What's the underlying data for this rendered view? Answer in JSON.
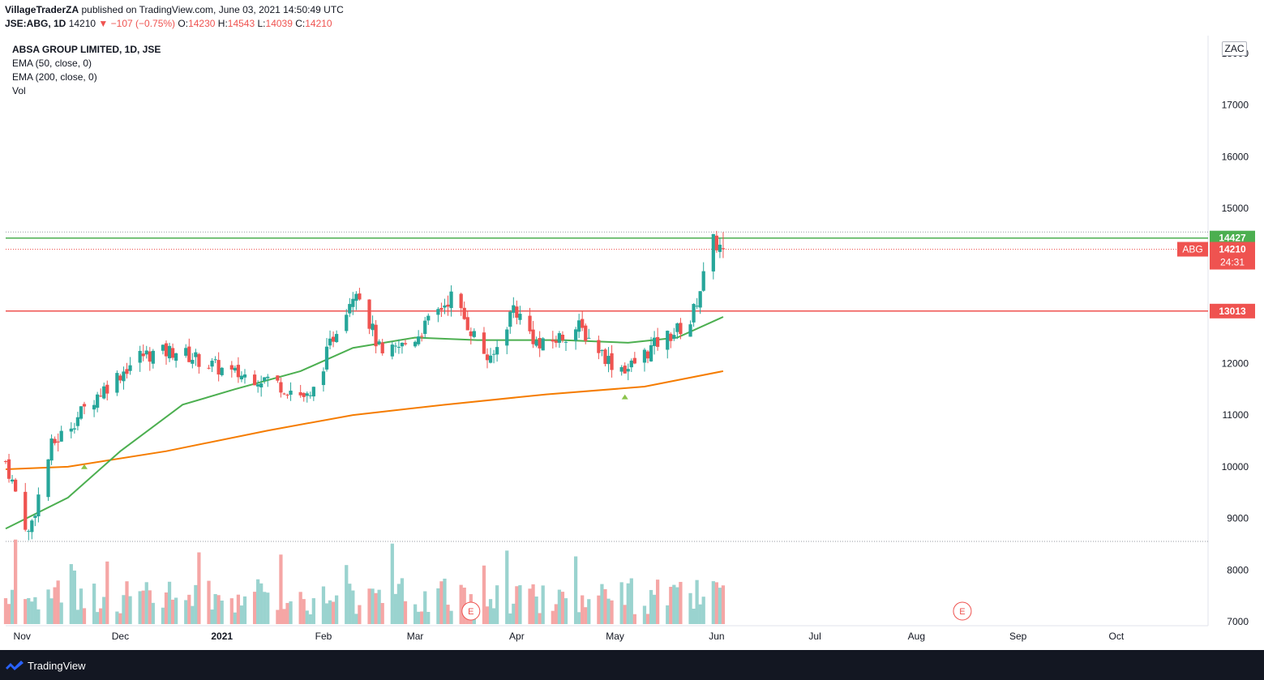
{
  "header": {
    "author": "VillageTraderZA",
    "published": "published on TradingView.com, June 03, 2021 14:50:49 UTC",
    "symbol": "JSE:ABG, 1D",
    "last": "14210",
    "change": "−107 (−0.75%)",
    "open_label": "O:",
    "open": "14230",
    "high_label": "H:",
    "high": "14543",
    "low_label": "L:",
    "low": "14039",
    "close_label": "C:",
    "close": "14210"
  },
  "legend": {
    "title": "ABSA GROUP LIMITED, 1D, JSE",
    "ema50": "EMA (50, close, 0)",
    "ema200": "EMA (200, close, 0)",
    "vol": "Vol"
  },
  "currency": "ZAC",
  "footer": {
    "brand": "TradingView"
  },
  "colors": {
    "up": "#26a69a",
    "down": "#ef5350",
    "ema50": "#4caf50",
    "ema200": "#f57c00",
    "resistance": "#4caf50",
    "support": "#ef5350"
  },
  "chart_data": {
    "type": "candlestick",
    "ylim": [
      7000,
      18000
    ],
    "y_ticks": [
      7000,
      8000,
      9000,
      10000,
      11000,
      12000,
      13000,
      14000,
      15000,
      16000,
      17000,
      18000
    ],
    "x_ticks": [
      "Nov",
      "Dec",
      "2021",
      "Feb",
      "Mar",
      "Apr",
      "May",
      "Jun",
      "Jul",
      "Aug",
      "Sep",
      "Oct"
    ],
    "start_date": "2020-10-27",
    "series": [
      {
        "name": "ABG",
        "anchors": [
          [
            "2020-10-27",
            10100
          ],
          [
            "2020-11-03",
            8700
          ],
          [
            "2020-11-10",
            10400
          ],
          [
            "2020-11-24",
            11400
          ],
          [
            "2020-12-07",
            12150
          ],
          [
            "2020-12-18",
            12250
          ],
          [
            "2021-01-04",
            11800
          ],
          [
            "2021-01-15",
            11700
          ],
          [
            "2021-01-28",
            11300
          ],
          [
            "2021-02-05",
            12700
          ],
          [
            "2021-02-11",
            13500
          ],
          [
            "2021-02-19",
            12100
          ],
          [
            "2021-03-01",
            12500
          ],
          [
            "2021-03-12",
            13300
          ],
          [
            "2021-03-24",
            12000
          ],
          [
            "2021-03-31",
            13100
          ],
          [
            "2021-04-08",
            12300
          ],
          [
            "2021-04-20",
            12700
          ],
          [
            "2021-04-30",
            12000
          ],
          [
            "2021-05-05",
            11900
          ],
          [
            "2021-05-14",
            12400
          ],
          [
            "2021-05-24",
            12800
          ],
          [
            "2021-05-31",
            14350
          ],
          [
            "2021-06-03",
            14210
          ]
        ]
      },
      {
        "name": "EMA (50, close, 0)",
        "values": [
          [
            "2020-10-27",
            8800
          ],
          [
            "2020-11-15",
            9400
          ],
          [
            "2020-12-01",
            10300
          ],
          [
            "2020-12-20",
            11200
          ],
          [
            "2021-01-05",
            11500
          ],
          [
            "2021-01-25",
            11850
          ],
          [
            "2021-02-10",
            12300
          ],
          [
            "2021-03-01",
            12500
          ],
          [
            "2021-03-20",
            12450
          ],
          [
            "2021-04-15",
            12450
          ],
          [
            "2021-05-05",
            12400
          ],
          [
            "2021-05-20",
            12500
          ],
          [
            "2021-06-03",
            12900
          ]
        ]
      },
      {
        "name": "EMA (200, close, 0)",
        "values": [
          [
            "2020-10-27",
            9950
          ],
          [
            "2020-11-15",
            10000
          ],
          [
            "2020-12-15",
            10300
          ],
          [
            "2021-01-15",
            10700
          ],
          [
            "2021-02-10",
            11000
          ],
          [
            "2021-03-10",
            11200
          ],
          [
            "2021-04-10",
            11400
          ],
          [
            "2021-05-10",
            11550
          ],
          [
            "2021-06-03",
            11850
          ]
        ]
      }
    ],
    "hlines": [
      {
        "value": 14427,
        "label": "14427",
        "color": "#4caf50"
      },
      {
        "value": 13013,
        "label": "13013",
        "color": "#ef5350"
      }
    ],
    "last_price_label": {
      "symbol": "ABG",
      "price": "14210",
      "countdown": "24:31"
    },
    "earnings_markers": [
      {
        "date": "2021-03-18",
        "label": "E"
      },
      {
        "date": "2021-08-15",
        "label": "E"
      }
    ],
    "signal_markers": [
      "2020-11-20",
      "2021-05-04"
    ]
  }
}
